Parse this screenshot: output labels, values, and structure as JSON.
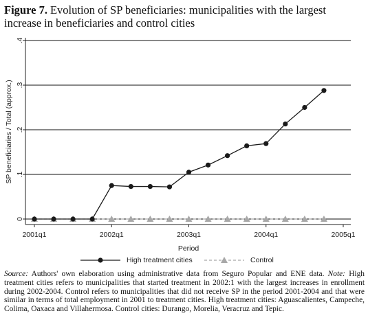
{
  "chart_data": {
    "type": "line",
    "figure_label": "Figure 7.",
    "title": "Evolution of SP beneficiaries: municipalities with the largest increase in beneficiaries and control cities",
    "y_label": "SP beneficiaries / Total (approx.)",
    "x_label": "Period",
    "categories": [
      "2001q1",
      null,
      null,
      null,
      "2002q1",
      null,
      null,
      null,
      "2003q1",
      null,
      null,
      null,
      "2004q1",
      null,
      null,
      null,
      "2005q1"
    ],
    "series": [
      {
        "name": "High treatment cities",
        "color": "#1a1a1a",
        "marker": "circle",
        "dash": false,
        "values": [
          0,
          0,
          0,
          0,
          0.075,
          0.073,
          0.073,
          0.072,
          0.105,
          0.121,
          0.142,
          0.164,
          0.169,
          0.213,
          0.25,
          0.288,
          null
        ]
      },
      {
        "name": "Control",
        "color": "#a8a8a8",
        "marker": "triangle",
        "dash": true,
        "values": [
          0,
          0,
          0,
          0,
          0,
          0,
          0,
          0,
          0,
          0,
          0,
          0,
          0,
          0,
          0,
          0,
          null
        ]
      }
    ],
    "ylim": [
      0,
      0.4
    ],
    "yticks": [
      0,
      {
        "value": 0.1,
        "label": ".1"
      },
      {
        "value": 0.2,
        "label": ".2"
      },
      {
        "value": 0.3,
        "label": ".3"
      },
      {
        "value": 0.4,
        "label": ".4"
      }
    ],
    "grid": true,
    "caption": {
      "source_label": "Source:",
      "source": "Authors' own elaboration using administrative data from Seguro Popular and ENE data.",
      "note_label": "Note:",
      "note": "High treatment cities refers to municipalities that started treatment in 2002:1 with the largest increases in enrollment during 2002-2004. Control refers to municipalities that did not receive SP in the period 2001-2004 and that were similar in terms of total employment in 2001 to treatment cities. High treatment cities: Aguascalientes, Campeche, Colima, Oaxaca and Villahermosa. Control cities: Durango, Morelia, Veracruz and Tepic."
    }
  }
}
